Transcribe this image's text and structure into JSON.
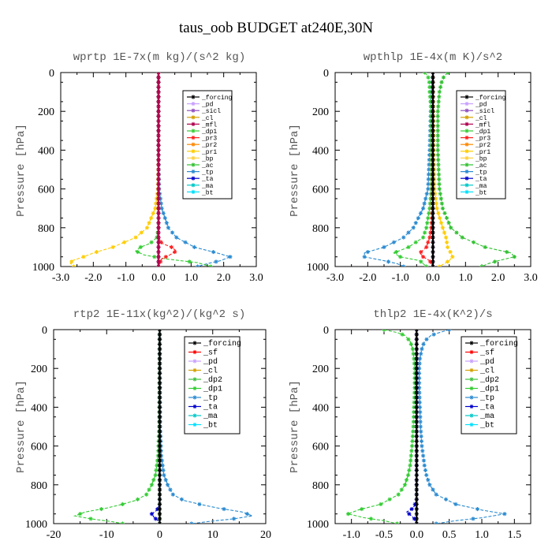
{
  "figure_title": "taus_oob  BUDGET at240E,30N",
  "colors": {
    "forcing": "#000000",
    "pd": "#c8a0ff",
    "sicl": "#9050c0",
    "cl": "#d4a000",
    "mfl": "#b00050",
    "dp1": "#33cc33",
    "dp2": "#40c040",
    "pr3": "#ff2020",
    "pr2": "#ff8800",
    "pr1": "#ffcc00",
    "bp": "#ffd040",
    "ac": "#30c030",
    "tp": "#2a8ad0",
    "ta": "#0000cc",
    "ma": "#00c8c8",
    "bt": "#00e0ff",
    "sf": "#ff0000"
  },
  "chart_data": [
    {
      "type": "line",
      "title": "wprtp  1E-7x(m kg)/(s^2 kg)",
      "ylabel": "Pressure [hPa]",
      "xlim": [
        -3,
        3
      ],
      "xticks": [
        "-3.0",
        "-2.0",
        "-1.0",
        "0.0",
        "1.0",
        "2.0",
        "3.0"
      ],
      "ylim": [
        1000,
        0
      ],
      "yticks": [
        "0",
        "200",
        "400",
        "600",
        "800",
        "1000"
      ],
      "legend": "top-right",
      "legend_entries": [
        "_forcing",
        "_pd",
        "_sicl",
        "_cl",
        "_mfl",
        "_dp1",
        "_pr3",
        "_pr2",
        "_pr1",
        "_bp",
        "_ac",
        "_tp",
        "_ta",
        "_ma",
        "_bt"
      ],
      "series": [
        {
          "key": "pr1",
          "p": [
            0,
            400,
            600,
            700,
            800,
            850,
            900,
            930,
            950,
            970,
            985,
            995,
            1000
          ],
          "x": [
            0,
            0,
            -0.02,
            -0.1,
            -0.35,
            -0.7,
            -1.4,
            -2.0,
            -2.3,
            -2.65,
            -2.7,
            -2.6,
            -2.6
          ]
        },
        {
          "key": "tp",
          "p": [
            0,
            400,
            600,
            700,
            800,
            850,
            900,
            930,
            950,
            970,
            985,
            995,
            1000
          ],
          "x": [
            0,
            0,
            0.02,
            0.1,
            0.3,
            0.55,
            1.1,
            1.8,
            2.2,
            1.9,
            1.5,
            1.3,
            1.2
          ]
        },
        {
          "key": "dp1",
          "p": [
            0,
            600,
            800,
            850,
            880,
            900,
            920,
            940,
            960,
            980,
            995,
            1000
          ],
          "x": [
            0,
            0,
            0,
            -0.05,
            -0.25,
            -0.55,
            -0.7,
            -0.45,
            0.2,
            1.2,
            1.5,
            1.6
          ]
        },
        {
          "key": "pr3",
          "p": [
            0,
            700,
            850,
            880,
            900,
            920,
            940,
            960,
            980,
            1000
          ],
          "x": [
            0,
            0,
            0,
            0.1,
            0.4,
            0.55,
            0.35,
            0.1,
            0.05,
            0
          ]
        },
        {
          "key": "forcing",
          "p": [
            0,
            1000
          ],
          "x": [
            0,
            0
          ]
        },
        {
          "key": "pd",
          "p": [
            0,
            1000
          ],
          "x": [
            0,
            0
          ]
        },
        {
          "key": "mfl",
          "p": [
            0,
            1000
          ],
          "x": [
            0,
            0
          ]
        }
      ]
    },
    {
      "type": "line",
      "title": "wpthlp  1E-4x(m K)/s^2",
      "ylabel": "Pressure [hPa]",
      "xlim": [
        -3,
        3
      ],
      "xticks": [
        "-3.0",
        "-2.0",
        "-1.0",
        "0.0",
        "1.0",
        "2.0",
        "3.0"
      ],
      "ylim": [
        1000,
        0
      ],
      "yticks": [
        "0",
        "200",
        "400",
        "600",
        "800",
        "1000"
      ],
      "legend": "top-right",
      "legend_entries": [
        "_forcing",
        "_pd",
        "_sicl",
        "_cl",
        "_mfl",
        "_dp1",
        "_pr3",
        "_pr2",
        "_pr1",
        "_bp",
        "_ac",
        "_tp",
        "_ta",
        "_ma",
        "_bt"
      ],
      "series": [
        {
          "key": "ac",
          "p": [
            0,
            30,
            60,
            100,
            200,
            400,
            600,
            700,
            800,
            850,
            900,
            930,
            950,
            970,
            985,
            1000
          ],
          "x": [
            0.45,
            0.3,
            0.25,
            0.2,
            0.15,
            0.15,
            0.2,
            0.3,
            0.55,
            0.9,
            1.6,
            2.4,
            2.5,
            2.0,
            1.7,
            1.5
          ]
        },
        {
          "key": "tp",
          "p": [
            0,
            100,
            400,
            600,
            700,
            800,
            850,
            900,
            930,
            950,
            970,
            985,
            1000
          ],
          "x": [
            0,
            -0.05,
            -0.1,
            -0.15,
            -0.3,
            -0.6,
            -0.9,
            -1.5,
            -2.1,
            -2.1,
            -1.5,
            -1.1,
            -0.9
          ]
        },
        {
          "key": "dp1",
          "p": [
            0,
            20,
            60,
            100,
            200,
            400,
            600,
            700,
            800,
            850,
            900,
            930,
            950,
            970,
            1000
          ],
          "x": [
            -0.25,
            -0.15,
            -0.1,
            -0.1,
            -0.05,
            -0.05,
            -0.05,
            -0.1,
            -0.2,
            -0.3,
            -0.75,
            -1.2,
            -1.0,
            -0.4,
            -0.2
          ]
        },
        {
          "key": "pr1",
          "p": [
            0,
            600,
            700,
            800,
            850,
            900,
            930,
            950,
            970,
            990,
            1000
          ],
          "x": [
            0,
            0.05,
            0.12,
            0.3,
            0.4,
            0.45,
            0.55,
            0.6,
            0.5,
            0.3,
            0.2
          ]
        },
        {
          "key": "pr3",
          "p": [
            0,
            700,
            800,
            850,
            900,
            930,
            950,
            970,
            1000
          ],
          "x": [
            0,
            -0.02,
            -0.05,
            -0.1,
            -0.2,
            -0.4,
            -0.3,
            -0.1,
            0
          ]
        },
        {
          "key": "pd",
          "p": [
            0,
            1000
          ],
          "x": [
            0,
            0
          ]
        },
        {
          "key": "forcing",
          "p": [
            0,
            1000
          ],
          "x": [
            0,
            0
          ]
        }
      ]
    },
    {
      "type": "line",
      "title": "rtp2  1E-11x(kg^2)/(kg^2 s)",
      "ylabel": "Pressure [hPa]",
      "xlim": [
        -20,
        20
      ],
      "xticks": [
        "-20",
        "-10",
        "0",
        "10",
        "20"
      ],
      "ylim": [
        1000,
        0
      ],
      "yticks": [
        "0",
        "200",
        "400",
        "600",
        "800",
        "1000"
      ],
      "legend": "top-right",
      "legend_entries": [
        "_forcing",
        "_sf",
        "_pd",
        "_cl",
        "_dp2",
        "_dp1",
        "_tp",
        "_ta",
        "_ma",
        "_bt"
      ],
      "series": [
        {
          "key": "dp1",
          "p": [
            0,
            500,
            650,
            750,
            800,
            850,
            880,
            900,
            920,
            940,
            960,
            975,
            990,
            1000
          ],
          "x": [
            0,
            -0.1,
            -0.3,
            -0.8,
            -1.5,
            -2.5,
            -4.5,
            -7,
            -10,
            -14,
            -16,
            -13,
            -9,
            -7
          ]
        },
        {
          "key": "tp",
          "p": [
            0,
            500,
            650,
            750,
            800,
            850,
            880,
            900,
            920,
            940,
            960,
            975,
            990,
            1000
          ],
          "x": [
            0,
            0.1,
            0.3,
            0.8,
            1.5,
            2.5,
            4.5,
            7.5,
            11,
            15.5,
            17.5,
            14,
            9,
            6
          ]
        },
        {
          "key": "ta",
          "p": [
            0,
            900,
            930,
            950,
            970,
            985,
            1000
          ],
          "x": [
            0,
            0,
            -0.5,
            -1.5,
            -1,
            -0.3,
            0
          ]
        },
        {
          "key": "dp2",
          "p": [
            0,
            1000
          ],
          "x": [
            0,
            0
          ]
        },
        {
          "key": "forcing",
          "p": [
            0,
            1000
          ],
          "x": [
            0,
            0
          ]
        }
      ]
    },
    {
      "type": "line",
      "title": "thlp2  1E-4x(K^2)/s",
      "ylabel": "Pressure [hPa]",
      "xlim": [
        -1.25,
        1.75
      ],
      "xticks": [
        "-1.0",
        "-0.5",
        "0.0",
        "0.5",
        "1.0",
        "1.5"
      ],
      "ylim": [
        1000,
        0
      ],
      "yticks": [
        "0",
        "200",
        "400",
        "600",
        "800",
        "1000"
      ],
      "legend": "top-right",
      "legend_entries": [
        "_forcing",
        "_sf",
        "_pd",
        "_cl",
        "_dp2",
        "_dp1",
        "_tp",
        "_ta",
        "_ma",
        "_bt"
      ],
      "series": [
        {
          "key": "tp",
          "p": [
            0,
            15,
            30,
            60,
            100,
            150,
            200,
            300,
            400,
            500,
            600,
            700,
            750,
            800,
            850,
            900,
            930,
            950,
            970,
            985,
            1000
          ],
          "x": [
            0.5,
            0.35,
            0.22,
            0.12,
            0.08,
            0.05,
            0.04,
            0.04,
            0.05,
            0.06,
            0.08,
            0.12,
            0.15,
            0.2,
            0.3,
            0.6,
            1.0,
            1.35,
            1.0,
            0.6,
            0.3
          ]
        },
        {
          "key": "dp1",
          "p": [
            0,
            15,
            30,
            60,
            100,
            150,
            200,
            300,
            400,
            500,
            600,
            700,
            750,
            800,
            850,
            900,
            930,
            950,
            970,
            985,
            1000
          ],
          "x": [
            -0.5,
            -0.3,
            -0.18,
            -0.1,
            -0.06,
            -0.04,
            -0.03,
            -0.03,
            -0.04,
            -0.05,
            -0.07,
            -0.1,
            -0.13,
            -0.18,
            -0.28,
            -0.55,
            -0.9,
            -1.05,
            -0.8,
            -0.5,
            -0.3
          ]
        },
        {
          "key": "ta",
          "p": [
            0,
            880,
            920,
            940,
            960,
            980,
            1000
          ],
          "x": [
            0,
            0,
            -0.05,
            -0.15,
            -0.08,
            -0.02,
            0
          ]
        },
        {
          "key": "forcing",
          "p": [
            0,
            1000
          ],
          "x": [
            0,
            0
          ]
        }
      ]
    }
  ]
}
